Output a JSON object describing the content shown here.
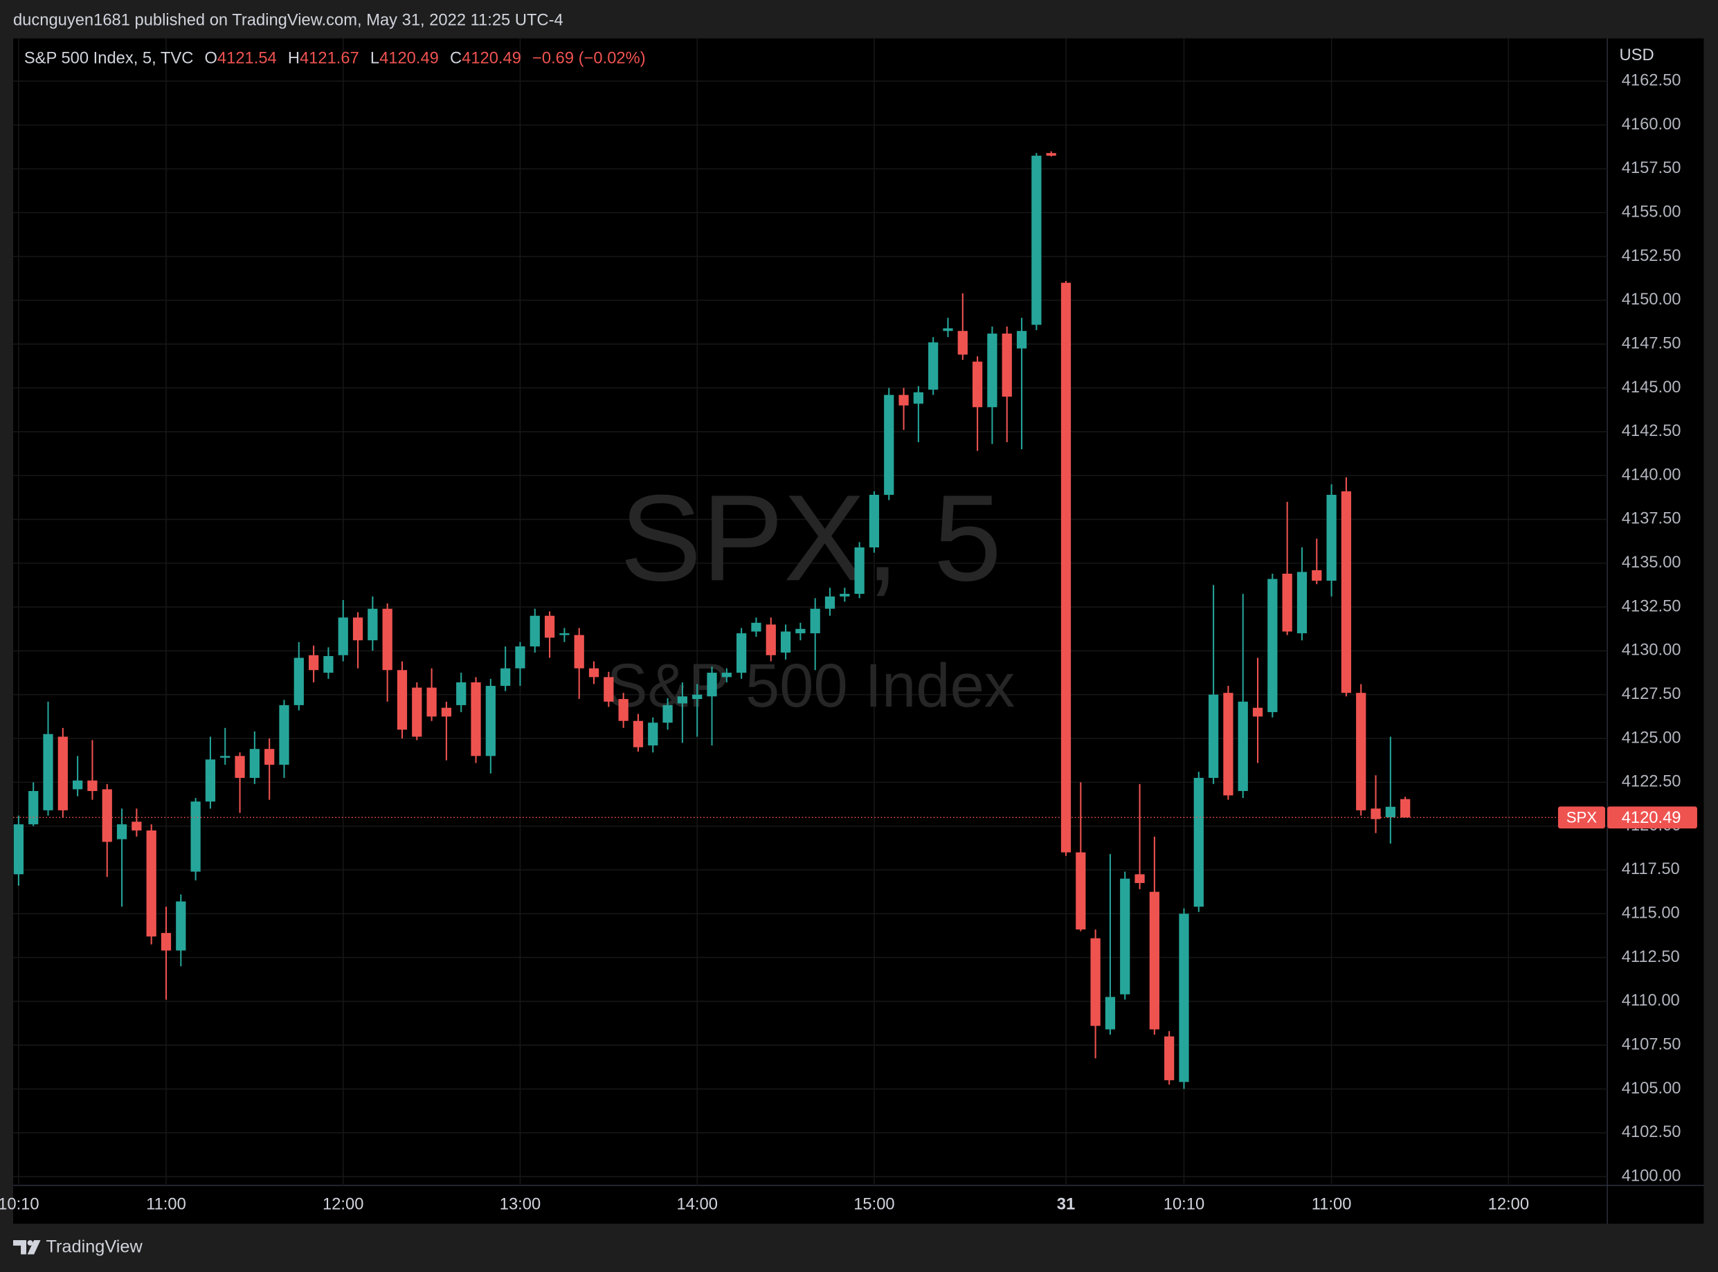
{
  "header": "ducnguyen1681 published on TradingView.com, May 31, 2022 11:25 UTC-4",
  "footer": "TradingView",
  "chart_data": {
    "type": "candlestick",
    "symbol": "SPX",
    "currency": "USD",
    "watermark": [
      "SPX, 5",
      "S&P 500 Index"
    ],
    "legend": {
      "name": "S&P 500 Index, 5, TVC",
      "labels": [
        "O",
        "H",
        "L",
        "C"
      ],
      "change": "−0.69 (−0.02%)"
    },
    "up_color": "#26a69a",
    "down_color": "#ef5350",
    "grid": true,
    "open": [
      4117.25,
      4120.1,
      4120.9,
      4125.1,
      4122.1,
      4122.6,
      4122.1,
      4119.25,
      4120.25,
      4119.75,
      4113.9,
      4112.9,
      4117.4,
      4121.4,
      4123.9,
      4124.0,
      4122.75,
      4124.4,
      4123.5,
      4126.9,
      4129.75,
      4128.75,
      4129.75,
      4131.9,
      4130.6,
      4132.4,
      4128.9,
      4127.9,
      4127.9,
      4126.75,
      4126.9,
      4128.2,
      4124.0,
      4128.0,
      4129.0,
      4130.25,
      4132.0,
      4130.9,
      4130.9,
      4129.0,
      4128.5,
      4127.25,
      4126.0,
      4124.6,
      4125.9,
      4127.0,
      4127.25,
      4127.4,
      4128.5,
      4128.75,
      4131.1,
      4131.5,
      4129.9,
      4131.0,
      4131.0,
      4132.4,
      4133.1,
      4133.25,
      4135.9,
      4138.9,
      4144.6,
      4144.1,
      4144.9,
      4148.25,
      4148.25,
      4146.5,
      4143.9,
      4148.1,
      4147.25,
      4148.6,
      4158.4,
      4151.0,
      4118.5,
      4113.6,
      4108.4,
      4110.4,
      4117.25,
      4116.25,
      4108.0,
      4105.4,
      4115.4,
      4122.75,
      4127.6,
      4122.0,
      4126.75,
      4126.5,
      4134.4,
      4131.0,
      4134.6,
      4134.0,
      4139.1,
      4127.6,
      4121.0,
      4120.5,
      4121.54
    ],
    "high": [
      4120.6,
      4122.5,
      4127.1,
      4125.6,
      4124.0,
      4124.9,
      4122.4,
      4121.0,
      4121.0,
      4120.1,
      4115.4,
      4116.1,
      4121.6,
      4125.1,
      4125.6,
      4124.2,
      4125.4,
      4125.0,
      4127.2,
      4130.5,
      4130.3,
      4130.2,
      4132.9,
      4132.2,
      4133.1,
      4132.7,
      4129.4,
      4128.2,
      4129.0,
      4127.1,
      4128.75,
      4128.5,
      4128.4,
      4130.25,
      4130.5,
      4132.4,
      4132.25,
      4131.3,
      4131.3,
      4129.4,
      4128.8,
      4127.6,
      4126.4,
      4126.2,
      4127.3,
      4128.2,
      4128.1,
      4129.1,
      4129.0,
      4131.3,
      4131.9,
      4131.9,
      4131.5,
      4131.6,
      4133.0,
      4133.6,
      4133.6,
      4136.2,
      4139.1,
      4145.0,
      4145.0,
      4145.1,
      4147.9,
      4149.0,
      4150.4,
      4146.8,
      4148.5,
      4148.5,
      4149.0,
      4158.4,
      4158.5,
      4151.1,
      4122.5,
      4114.1,
      4118.4,
      4117.4,
      4122.4,
      4119.4,
      4108.3,
      4115.3,
      4123.1,
      4133.75,
      4128.0,
      4133.25,
      4129.6,
      4134.4,
      4138.5,
      4135.9,
      4136.4,
      4139.5,
      4139.9,
      4128.1,
      4122.9,
      4125.1,
      4121.67
    ],
    "low": [
      4116.6,
      4120.0,
      4120.6,
      4120.5,
      4121.7,
      4121.5,
      4117.1,
      4115.4,
      4119.4,
      4113.25,
      4110.1,
      4112.0,
      4116.9,
      4121.0,
      4123.5,
      4120.75,
      4122.4,
      4121.5,
      4122.75,
      4126.6,
      4128.2,
      4128.4,
      4129.4,
      4129.0,
      4130.0,
      4127.1,
      4125.0,
      4124.9,
      4126.0,
      4123.75,
      4126.5,
      4123.6,
      4123.0,
      4127.7,
      4128.0,
      4129.9,
      4129.6,
      4130.5,
      4127.25,
      4128.1,
      4126.8,
      4125.6,
      4124.25,
      4124.2,
      4125.5,
      4124.75,
      4125.1,
      4124.6,
      4128.2,
      4128.4,
      4130.8,
      4129.4,
      4129.5,
      4130.6,
      4128.9,
      4132.0,
      4132.8,
      4133.0,
      4135.6,
      4138.6,
      4142.6,
      4141.9,
      4144.6,
      4147.9,
      4146.6,
      4141.4,
      4141.8,
      4141.9,
      4141.5,
      4148.3,
      4158.2,
      4118.3,
      4114.0,
      4106.75,
      4108.1,
      4110.1,
      4116.4,
      4108.1,
      4105.25,
      4105.0,
      4115.1,
      4122.4,
      4121.5,
      4121.6,
      4123.6,
      4126.2,
      4130.9,
      4130.6,
      4133.8,
      4133.1,
      4127.4,
      4120.6,
      4119.6,
      4119.0,
      4120.49
    ],
    "close": [
      4120.1,
      4122.0,
      4125.25,
      4120.9,
      4122.6,
      4122.0,
      4119.1,
      4120.1,
      4119.75,
      4113.7,
      4112.9,
      4115.7,
      4121.4,
      4123.8,
      4124.0,
      4122.75,
      4124.4,
      4123.5,
      4126.9,
      4129.6,
      4128.9,
      4129.7,
      4131.9,
      4130.6,
      4132.4,
      4128.9,
      4125.5,
      4125.1,
      4126.25,
      4126.25,
      4128.2,
      4124.0,
      4128.0,
      4129.0,
      4130.25,
      4132.0,
      4130.75,
      4131.0,
      4129.0,
      4128.5,
      4127.1,
      4126.0,
      4124.5,
      4125.9,
      4126.9,
      4127.4,
      4127.5,
      4128.75,
      4128.75,
      4131.0,
      4131.6,
      4129.75,
      4131.1,
      4131.25,
      4132.4,
      4133.1,
      4133.25,
      4135.9,
      4138.9,
      4144.6,
      4144.0,
      4144.75,
      4147.6,
      4148.4,
      4146.9,
      4143.9,
      4148.1,
      4144.5,
      4148.25,
      4158.25,
      4158.25,
      4118.5,
      4114.1,
      4108.6,
      4110.25,
      4117.0,
      4116.75,
      4108.4,
      4105.5,
      4115.0,
      4122.75,
      4127.5,
      4121.75,
      4127.1,
      4126.25,
      4134.1,
      4131.1,
      4134.5,
      4134.0,
      4138.9,
      4127.6,
      4120.9,
      4120.4,
      4121.1,
      4120.49
    ],
    "xlim": [
      -0.37,
      107.7
    ],
    "xticks": [
      {
        "value": 0,
        "label": "10:10"
      },
      {
        "value": 10,
        "label": "11:00"
      },
      {
        "value": 22,
        "label": "12:00"
      },
      {
        "value": 34,
        "label": "13:00"
      },
      {
        "value": 46,
        "label": "14:00"
      },
      {
        "value": 58,
        "label": "15:00"
      },
      {
        "value": 71,
        "label": "31"
      },
      {
        "value": 79,
        "label": "10:10"
      },
      {
        "value": 89,
        "label": "11:00"
      },
      {
        "value": 101,
        "label": "12:00"
      }
    ],
    "ylim": [
      4099.5,
      4164.94
    ],
    "yticks": [
      {
        "value": 4100,
        "label": "4100.00"
      },
      {
        "value": 4102.5,
        "label": "4102.50"
      },
      {
        "value": 4105,
        "label": "4105.00"
      },
      {
        "value": 4107.5,
        "label": "4107.50"
      },
      {
        "value": 4110,
        "label": "4110.00"
      },
      {
        "value": 4112.5,
        "label": "4112.50"
      },
      {
        "value": 4115,
        "label": "4115.00"
      },
      {
        "value": 4117.5,
        "label": "4117.50"
      },
      {
        "value": 4120,
        "label": "4120.00"
      },
      {
        "value": 4122.5,
        "label": "4122.50"
      },
      {
        "value": 4125,
        "label": "4125.00"
      },
      {
        "value": 4127.5,
        "label": "4127.50"
      },
      {
        "value": 4130,
        "label": "4130.00"
      },
      {
        "value": 4132.5,
        "label": "4132.50"
      },
      {
        "value": 4135,
        "label": "4135.00"
      },
      {
        "value": 4137.5,
        "label": "4137.50"
      },
      {
        "value": 4140,
        "label": "4140.00"
      },
      {
        "value": 4142.5,
        "label": "4142.50"
      },
      {
        "value": 4145,
        "label": "4145.00"
      },
      {
        "value": 4147.5,
        "label": "4147.50"
      },
      {
        "value": 4150,
        "label": "4150.00"
      },
      {
        "value": 4152.5,
        "label": "4152.50"
      },
      {
        "value": 4155,
        "label": "4155.00"
      },
      {
        "value": 4157.5,
        "label": "4157.50"
      },
      {
        "value": 4160,
        "label": "4160.00"
      },
      {
        "value": 4162.5,
        "label": "4162.50"
      }
    ]
  }
}
